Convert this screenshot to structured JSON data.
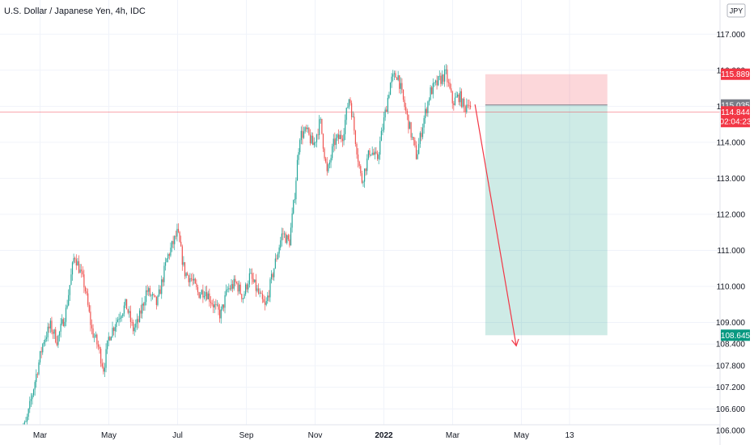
{
  "chart_data": {
    "type": "candlestick",
    "title": "U.S. Dollar / Japanese Yen, 4h, IDC",
    "currency": "JPY",
    "ylim": [
      105.8,
      117.5
    ],
    "y_ticks": [
      {
        "value": 117.0,
        "label": "117.000"
      },
      {
        "value": 116.0,
        "label": "116.000"
      },
      {
        "value": 115.0,
        "label": "115.000"
      },
      {
        "value": 114.0,
        "label": "114.000"
      },
      {
        "value": 113.0,
        "label": "113.000"
      },
      {
        "value": 112.0,
        "label": "112.000"
      },
      {
        "value": 111.0,
        "label": "111.000"
      },
      {
        "value": 110.0,
        "label": "110.000"
      },
      {
        "value": 109.0,
        "label": "109.000"
      },
      {
        "value": 108.4,
        "label": "108.400"
      },
      {
        "value": 107.8,
        "label": "107.800"
      },
      {
        "value": 107.2,
        "label": "107.200"
      },
      {
        "value": 106.6,
        "label": "106.600"
      },
      {
        "value": 106.0,
        "label": "106.000"
      }
    ],
    "x_ticks": [
      {
        "t": 0.6,
        "label": "Mar"
      },
      {
        "t": 2.6,
        "label": "May"
      },
      {
        "t": 4.6,
        "label": "Jul"
      },
      {
        "t": 6.6,
        "label": "Sep"
      },
      {
        "t": 8.6,
        "label": "Nov"
      },
      {
        "t": 10.6,
        "label": "2022",
        "bold": true
      },
      {
        "t": 12.6,
        "label": "Mar"
      },
      {
        "t": 14.6,
        "label": "May"
      },
      {
        "t": 16.0,
        "label": "13"
      }
    ],
    "price_path": [
      [
        0.0,
        105.9
      ],
      [
        0.2,
        106.2
      ],
      [
        0.5,
        107.6
      ],
      [
        0.7,
        108.5
      ],
      [
        0.9,
        108.9
      ],
      [
        1.1,
        108.5
      ],
      [
        1.35,
        109.3
      ],
      [
        1.6,
        110.9
      ],
      [
        1.9,
        110.0
      ],
      [
        2.1,
        108.8
      ],
      [
        2.3,
        108.3
      ],
      [
        2.45,
        107.7
      ],
      [
        2.6,
        108.6
      ],
      [
        2.9,
        109.2
      ],
      [
        3.1,
        109.5
      ],
      [
        3.3,
        108.8
      ],
      [
        3.45,
        109.0
      ],
      [
        3.7,
        109.9
      ],
      [
        4.0,
        109.5
      ],
      [
        4.3,
        110.8
      ],
      [
        4.6,
        111.5
      ],
      [
        4.8,
        110.4
      ],
      [
        5.0,
        110.2
      ],
      [
        5.2,
        109.8
      ],
      [
        5.4,
        109.9
      ],
      [
        5.7,
        109.4
      ],
      [
        5.85,
        109.2
      ],
      [
        6.05,
        109.9
      ],
      [
        6.3,
        110.1
      ],
      [
        6.5,
        109.7
      ],
      [
        6.7,
        110.3
      ],
      [
        6.9,
        109.9
      ],
      [
        7.15,
        109.4
      ],
      [
        7.4,
        110.5
      ],
      [
        7.65,
        111.5
      ],
      [
        7.85,
        111.2
      ],
      [
        8.0,
        112.5
      ],
      [
        8.15,
        114.2
      ],
      [
        8.35,
        114.3
      ],
      [
        8.55,
        113.9
      ],
      [
        8.75,
        114.6
      ],
      [
        8.95,
        113.1
      ],
      [
        9.15,
        114.0
      ],
      [
        9.4,
        114.2
      ],
      [
        9.6,
        115.3
      ],
      [
        9.8,
        113.9
      ],
      [
        9.95,
        112.9
      ],
      [
        10.2,
        113.8
      ],
      [
        10.4,
        113.5
      ],
      [
        10.6,
        114.6
      ],
      [
        10.8,
        115.7
      ],
      [
        11.0,
        115.9
      ],
      [
        11.15,
        115.2
      ],
      [
        11.35,
        114.4
      ],
      [
        11.55,
        113.6
      ],
      [
        11.75,
        114.6
      ],
      [
        11.95,
        115.4
      ],
      [
        12.2,
        115.7
      ],
      [
        12.4,
        115.9
      ],
      [
        12.6,
        115.1
      ],
      [
        12.8,
        115.3
      ],
      [
        12.95,
        114.9
      ],
      [
        13.05,
        115.2
      ],
      [
        13.12,
        114.9
      ]
    ],
    "position": {
      "type": "short",
      "entry": 115.035,
      "stop": 115.889,
      "target": 108.645,
      "t_start": 13.55,
      "t_end": 17.1
    },
    "arrow": {
      "t_from": 13.25,
      "y_from": 115.05,
      "t_to": 14.45,
      "y_to": 108.35
    },
    "current_price": 114.844,
    "countdown": "02:04:23",
    "tags": [
      {
        "value": 115.889,
        "label": "115.889",
        "color": "#f23645"
      },
      {
        "value": 115.035,
        "label": "115.035",
        "color": "#787b86"
      },
      {
        "value": 114.844,
        "label": "114.844",
        "color": "#f23645"
      },
      {
        "value": 108.645,
        "label": "108.645",
        "color": "#089981"
      }
    ],
    "colors": {
      "up": "#26a69a",
      "down": "#ef5350",
      "stop_zone": "#f23645",
      "target_zone": "#089981",
      "grid": "#f0f3fa",
      "axis_text": "#131722"
    },
    "grid": true
  }
}
